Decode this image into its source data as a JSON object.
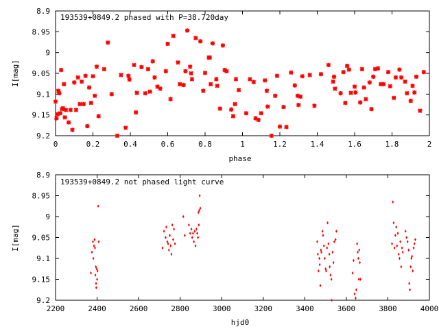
{
  "chart_data": [
    {
      "type": "scatter",
      "title": "193539+0849.2 phased with P=38.720day",
      "xlabel": "phase",
      "ylabel": "I[mag]",
      "xlim": [
        0,
        2
      ],
      "ylim": [
        8.9,
        9.2
      ],
      "y_inverted": true,
      "xticks": [
        0,
        0.2,
        0.4,
        0.6,
        0.8,
        1,
        1.2,
        1.4,
        1.6,
        1.8,
        2
      ],
      "xtick_labels": [
        "0",
        "0.2",
        "0.4",
        "0.6",
        "0.8",
        "1",
        "1.2",
        "1.4",
        "1.6",
        "1.8",
        "2"
      ],
      "yticks": [
        8.9,
        8.95,
        9.0,
        9.05,
        9.1,
        9.15,
        9.2
      ],
      "ytick_labels": [
        "8.9",
        "8.95",
        "9",
        "9.05",
        "9.1",
        "9.15",
        "9.2"
      ],
      "marker_color": "#ff0000",
      "points": [
        [
          0.0,
          9.118
        ],
        [
          0.005,
          9.158
        ],
        [
          0.01,
          9.148
        ],
        [
          0.015,
          9.092
        ],
        [
          0.02,
          9.098
        ],
        [
          0.025,
          9.146
        ],
        [
          0.03,
          9.042
        ],
        [
          0.035,
          9.136
        ],
        [
          0.04,
          9.134
        ],
        [
          0.045,
          9.076
        ],
        [
          0.05,
          9.156
        ],
        [
          0.055,
          9.138
        ],
        [
          0.07,
          9.168
        ],
        [
          0.08,
          9.138
        ],
        [
          0.09,
          9.186
        ],
        [
          0.1,
          9.072
        ],
        [
          0.11,
          9.138
        ],
        [
          0.12,
          9.06
        ],
        [
          0.13,
          9.124
        ],
        [
          0.14,
          9.07
        ],
        [
          0.15,
          9.124
        ],
        [
          0.16,
          9.056
        ],
        [
          0.17,
          9.177
        ],
        [
          0.18,
          9.084
        ],
        [
          0.19,
          9.121
        ],
        [
          0.2,
          9.057
        ],
        [
          0.21,
          9.104
        ],
        [
          0.22,
          9.034
        ],
        [
          0.23,
          9.153
        ],
        [
          0.26,
          9.04
        ],
        [
          0.28,
          8.976
        ],
        [
          0.3,
          9.1
        ],
        [
          0.33,
          9.2
        ],
        [
          0.35,
          9.054
        ],
        [
          0.375,
          9.181
        ],
        [
          0.39,
          9.056
        ],
        [
          0.395,
          9.065
        ],
        [
          0.42,
          9.03
        ],
        [
          0.43,
          9.144
        ],
        [
          0.435,
          9.097
        ],
        [
          0.46,
          9.035
        ],
        [
          0.48,
          9.098
        ],
        [
          0.495,
          9.04
        ],
        [
          0.505,
          9.094
        ],
        [
          0.52,
          9.021
        ],
        [
          0.53,
          9.06
        ],
        [
          0.545,
          9.082
        ],
        [
          0.56,
          9.087
        ],
        [
          0.59,
          9.045
        ],
        [
          0.6,
          8.979
        ],
        [
          0.615,
          9.112
        ],
        [
          0.63,
          8.96
        ],
        [
          0.655,
          9.024
        ],
        [
          0.665,
          9.076
        ],
        [
          0.685,
          9.078
        ],
        [
          0.695,
          9.045
        ],
        [
          0.705,
          8.947
        ],
        [
          0.72,
          9.034
        ],
        [
          0.725,
          9.05
        ],
        [
          0.73,
          9.064
        ],
        [
          0.75,
          8.965
        ],
        [
          0.775,
          8.973
        ],
        [
          0.79,
          9.092
        ],
        [
          0.8,
          9.049
        ],
        [
          0.82,
          9.012
        ],
        [
          0.825,
          9.012
        ],
        [
          0.83,
          9.076
        ],
        [
          0.84,
          8.978
        ],
        [
          0.86,
          9.064
        ],
        [
          0.865,
          9.08
        ],
        [
          0.88,
          9.135
        ],
        [
          0.895,
          8.983
        ],
        [
          0.905,
          9.042
        ],
        [
          0.915,
          9.045
        ],
        [
          0.94,
          9.137
        ],
        [
          0.95,
          9.153
        ],
        [
          0.96,
          9.124
        ],
        [
          0.965,
          9.064
        ],
        [
          0.98,
          9.09
        ],
        [
          1.02,
          9.146
        ],
        [
          1.04,
          9.064
        ],
        [
          1.06,
          9.071
        ],
        [
          1.07,
          9.158
        ],
        [
          1.085,
          9.162
        ],
        [
          1.1,
          9.146
        ],
        [
          1.12,
          9.067
        ],
        [
          1.13,
          9.092
        ],
        [
          1.135,
          9.13
        ],
        [
          1.155,
          9.2
        ],
        [
          1.175,
          9.104
        ],
        [
          1.185,
          9.056
        ],
        [
          1.2,
          9.178
        ],
        [
          1.22,
          9.131
        ],
        [
          1.235,
          9.179
        ],
        [
          1.26,
          9.048
        ],
        [
          1.28,
          9.079
        ],
        [
          1.295,
          9.104
        ],
        [
          1.3,
          9.126
        ],
        [
          1.31,
          9.106
        ],
        [
          1.32,
          9.057
        ],
        [
          1.36,
          9.054
        ],
        [
          1.385,
          9.128
        ],
        [
          1.42,
          9.052
        ],
        [
          1.46,
          9.03
        ],
        [
          1.485,
          9.07
        ],
        [
          1.49,
          9.058
        ],
        [
          1.495,
          9.087
        ],
        [
          1.525,
          9.098
        ],
        [
          1.54,
          9.047
        ],
        [
          1.55,
          9.121
        ],
        [
          1.56,
          9.032
        ],
        [
          1.57,
          9.041
        ],
        [
          1.58,
          9.097
        ],
        [
          1.6,
          9.082
        ],
        [
          1.605,
          9.096
        ],
        [
          1.63,
          9.12
        ],
        [
          1.64,
          9.04
        ],
        [
          1.65,
          9.084
        ],
        [
          1.66,
          9.112
        ],
        [
          1.68,
          9.072
        ],
        [
          1.69,
          9.136
        ],
        [
          1.7,
          9.058
        ],
        [
          1.71,
          9.04
        ],
        [
          1.725,
          9.038
        ],
        [
          1.74,
          9.076
        ],
        [
          1.755,
          9.076
        ],
        [
          1.78,
          9.047
        ],
        [
          1.79,
          9.081
        ],
        [
          1.81,
          9.109
        ],
        [
          1.82,
          9.06
        ],
        [
          1.84,
          9.041
        ],
        [
          1.85,
          9.06
        ],
        [
          1.87,
          9.07
        ],
        [
          1.88,
          9.098
        ],
        [
          1.9,
          9.116
        ],
        [
          1.91,
          9.08
        ],
        [
          1.92,
          9.096
        ],
        [
          1.93,
          9.058
        ],
        [
          1.95,
          9.14
        ],
        [
          1.97,
          9.047
        ]
      ]
    },
    {
      "type": "scatter",
      "title": "193539+0849.2 not phased light curve",
      "xlabel": "hjd0",
      "ylabel": "I[mag]",
      "xlim": [
        2200,
        4000
      ],
      "ylim": [
        8.9,
        9.2
      ],
      "y_inverted": true,
      "xticks": [
        2200,
        2400,
        2600,
        2800,
        3000,
        3200,
        3400,
        3600,
        3800,
        4000
      ],
      "xtick_labels": [
        "2200",
        "2400",
        "2600",
        "2800",
        "3000",
        "3200",
        "3400",
        "3600",
        "3800",
        "4000"
      ],
      "yticks": [
        8.9,
        8.95,
        9.0,
        9.05,
        9.1,
        9.15,
        9.2
      ],
      "ytick_labels": [
        "8.9",
        "8.95",
        "9",
        "9.05",
        "9.1",
        "9.15",
        "9.2"
      ],
      "marker_color": "#ff0000",
      "points": [
        [
          2370,
          9.135
        ],
        [
          2375,
          9.085
        ],
        [
          2380,
          9.06
        ],
        [
          2382,
          9.1
        ],
        [
          2385,
          9.07
        ],
        [
          2388,
          9.055
        ],
        [
          2390,
          9.075
        ],
        [
          2392,
          9.14
        ],
        [
          2394,
          9.12
        ],
        [
          2395,
          9.16
        ],
        [
          2396,
          9.17
        ],
        [
          2398,
          9.125
        ],
        [
          2400,
          9.15
        ],
        [
          2402,
          9.13
        ],
        [
          2405,
          8.975
        ],
        [
          2408,
          9.06
        ],
        [
          2715,
          9.075
        ],
        [
          2722,
          9.035
        ],
        [
          2730,
          9.05
        ],
        [
          2733,
          9.025
        ],
        [
          2738,
          9.06
        ],
        [
          2742,
          9.065
        ],
        [
          2746,
          9.08
        ],
        [
          2750,
          9.045
        ],
        [
          2754,
          9.07
        ],
        [
          2758,
          9.09
        ],
        [
          2762,
          9.02
        ],
        [
          2766,
          9.055
        ],
        [
          2770,
          9.03
        ],
        [
          2775,
          9.065
        ],
        [
          2815,
          9.0
        ],
        [
          2822,
          9.045
        ],
        [
          2842,
          9.02
        ],
        [
          2848,
          9.04
        ],
        [
          2854,
          9.03
        ],
        [
          2858,
          9.05
        ],
        [
          2862,
          9.04
        ],
        [
          2866,
          9.06
        ],
        [
          2870,
          9.035
        ],
        [
          2874,
          9.07
        ],
        [
          2878,
          9.03
        ],
        [
          2882,
          9.04
        ],
        [
          2886,
          9.05
        ],
        [
          2888,
          8.99
        ],
        [
          2890,
          9.02
        ],
        [
          2892,
          8.985
        ],
        [
          2894,
          8.95
        ],
        [
          2897,
          8.98
        ],
        [
          3460,
          9.06
        ],
        [
          3463,
          9.09
        ],
        [
          3466,
          9.13
        ],
        [
          3470,
          9.1
        ],
        [
          3472,
          9.115
        ],
        [
          3475,
          9.165
        ],
        [
          3478,
          9.08
        ],
        [
          3480,
          9.085
        ],
        [
          3485,
          9.035
        ],
        [
          3488,
          9.045
        ],
        [
          3492,
          9.07
        ],
        [
          3496,
          9.1
        ],
        [
          3500,
          9.125
        ],
        [
          3503,
          9.13
        ],
        [
          3507,
          9.075
        ],
        [
          3510,
          9.015
        ],
        [
          3514,
          9.065
        ],
        [
          3518,
          9.09
        ],
        [
          3520,
          9.12
        ],
        [
          3524,
          9.14
        ],
        [
          3528,
          9.15
        ],
        [
          3530,
          9.2
        ],
        [
          3534,
          9.085
        ],
        [
          3538,
          9.11
        ],
        [
          3542,
          9.06
        ],
        [
          3548,
          9.055
        ],
        [
          3552,
          9.035
        ],
        [
          3630,
          9.135
        ],
        [
          3635,
          9.105
        ],
        [
          3640,
          9.185
        ],
        [
          3645,
          9.195
        ],
        [
          3648,
          9.175
        ],
        [
          3652,
          9.065
        ],
        [
          3655,
          9.085
        ],
        [
          3658,
          9.1
        ],
        [
          3660,
          9.15
        ],
        [
          3662,
          9.08
        ],
        [
          3665,
          9.11
        ],
        [
          3668,
          9.15
        ],
        [
          3820,
          9.065
        ],
        [
          3824,
          8.965
        ],
        [
          3828,
          9.015
        ],
        [
          3832,
          9.075
        ],
        [
          3836,
          9.045
        ],
        [
          3840,
          9.025
        ],
        [
          3844,
          9.07
        ],
        [
          3848,
          9.04
        ],
        [
          3852,
          9.09
        ],
        [
          3856,
          9.1
        ],
        [
          3860,
          9.06
        ],
        [
          3864,
          9.12
        ],
        [
          3868,
          9.075
        ],
        [
          3872,
          9.085
        ],
        [
          3885,
          9.035
        ],
        [
          3890,
          9.05
        ],
        [
          3895,
          9.06
        ],
        [
          3900,
          9.08
        ],
        [
          3903,
          9.16
        ],
        [
          3906,
          9.175
        ],
        [
          3910,
          9.12
        ],
        [
          3913,
          9.1
        ],
        [
          3916,
          9.095
        ],
        [
          3920,
          9.13
        ],
        [
          3924,
          9.075
        ],
        [
          3928,
          9.065
        ],
        [
          3932,
          9.055
        ]
      ]
    }
  ]
}
